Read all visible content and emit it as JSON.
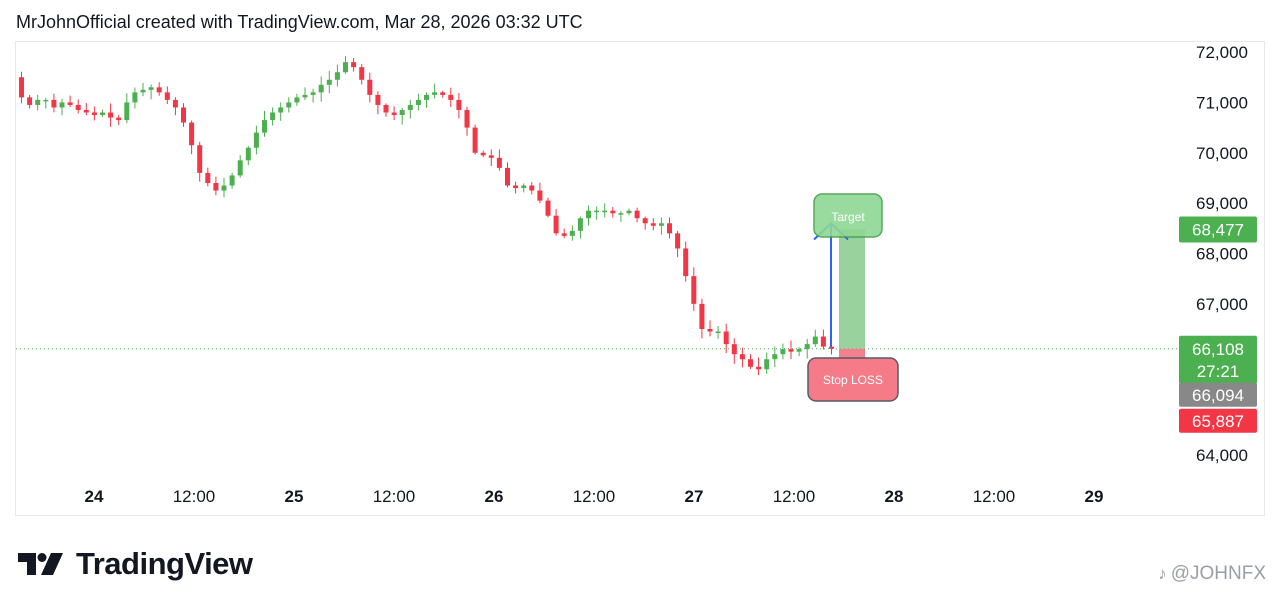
{
  "header": {
    "text": "MrJohnOfficial created with TradingView.com, Mar 28, 2026 03:32 UTC"
  },
  "brand": {
    "name": "TradingView"
  },
  "watermark": {
    "text": "@JOHNFX"
  },
  "chart_data": {
    "type": "candlestick",
    "y_ticks": [
      "72,000",
      "71,000",
      "70,000",
      "69,000",
      "68,000",
      "67,000",
      "64,000"
    ],
    "y_tick_values": [
      72000,
      71000,
      70000,
      69000,
      68000,
      67000,
      64000
    ],
    "ylim": [
      63700,
      72200
    ],
    "x_ticks": [
      "24",
      "12:00",
      "25",
      "12:00",
      "26",
      "12:00",
      "27",
      "12:00",
      "28",
      "12:00",
      "29"
    ],
    "x_tick_bold": [
      true,
      false,
      true,
      false,
      true,
      false,
      true,
      false,
      true,
      false,
      true
    ],
    "price_badges": [
      {
        "label": "68,477",
        "value": 68477,
        "color": "#4caf50"
      },
      {
        "label": "66,108",
        "value": 66108,
        "color": "#4caf50",
        "countdown": "27:21"
      },
      {
        "label": "66,094",
        "value": 66094,
        "color": "#888888"
      },
      {
        "label": "65,887",
        "value": 65887,
        "color": "#f23645"
      }
    ],
    "current_price": 66108,
    "annotations": {
      "target": {
        "label": "Target",
        "value": 68477
      },
      "stop_loss": {
        "label": "Stop LOSS",
        "value": 65887
      },
      "entry": 66108
    },
    "colors": {
      "up": "#4caf50",
      "down": "#f23645"
    },
    "grid": false,
    "closes": [
      71100,
      70950,
      71050,
      71050,
      70900,
      71000,
      70950,
      70850,
      70800,
      70750,
      70800,
      70700,
      70650,
      71000,
      71200,
      71250,
      71300,
      71200,
      71050,
      70900,
      70600,
      70150,
      69600,
      69400,
      69250,
      69350,
      69550,
      69850,
      70100,
      70400,
      70650,
      70800,
      70900,
      71000,
      71100,
      71150,
      71200,
      71350,
      71450,
      71600,
      71800,
      71700,
      71450,
      71150,
      70950,
      70800,
      70750,
      70850,
      70950,
      71050,
      71150,
      71200,
      71150,
      71050,
      70850,
      70500,
      70000,
      69950,
      69900,
      69700,
      69350,
      69300,
      69350,
      69250,
      69050,
      68750,
      68400,
      68350,
      68450,
      68700,
      68850,
      68850,
      68850,
      68800,
      68800,
      68850,
      68700,
      68600,
      68550,
      68600,
      68400,
      68100,
      67550,
      67000,
      66500,
      66450,
      66450,
      66200,
      66000,
      65900,
      65750,
      65700,
      65900,
      66000,
      66100,
      66050,
      66100,
      66200,
      66350,
      66150,
      66108
    ]
  }
}
